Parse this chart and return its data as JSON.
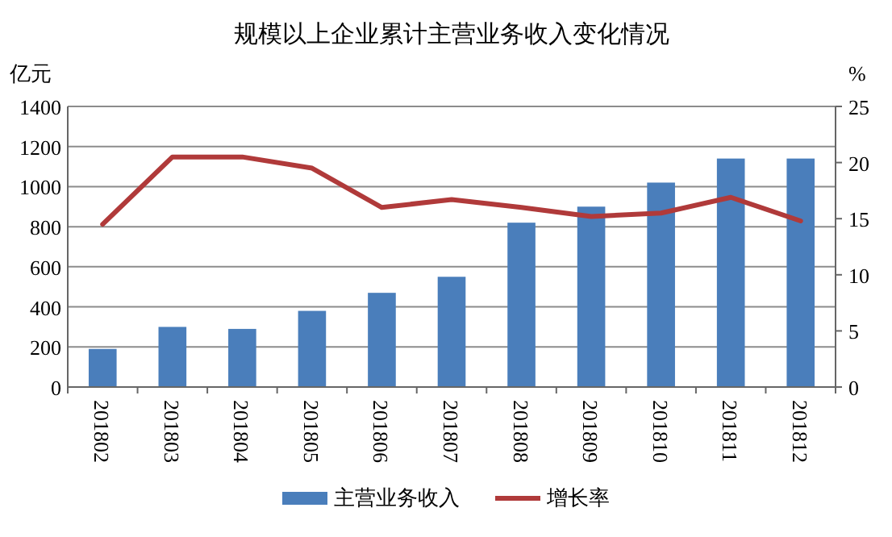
{
  "chart_data": {
    "type": "bar",
    "title": "规模以上企业累计主营业务收入变化情况",
    "ylabel": "亿元",
    "y2label": "%",
    "categories": [
      "201802",
      "201803",
      "201804",
      "201805",
      "201806",
      "201807",
      "201808",
      "201809",
      "201810",
      "201811",
      "201812"
    ],
    "series": [
      {
        "name": "主营业务收入",
        "color": "#4a7ebb",
        "values": [
          190,
          300,
          290,
          380,
          470,
          550,
          820,
          900,
          1020,
          1140,
          1140
        ]
      },
      {
        "name": "增长率",
        "type": "line",
        "axis": "y2",
        "color": "#b03a3a",
        "values": [
          14.5,
          20.5,
          20.5,
          19.5,
          16,
          16.7,
          16,
          15.2,
          15.5,
          16.9,
          14.8
        ]
      }
    ],
    "ylim": [
      0,
      1400
    ],
    "yticks": [
      0,
      200,
      400,
      600,
      800,
      1000,
      1200,
      1400
    ],
    "y2lim": [
      0,
      25
    ],
    "y2ticks": [
      0,
      5,
      10,
      15,
      20,
      25
    ],
    "grid": "y",
    "legend": "bottom",
    "marker": "none",
    "line_style": "solid"
  }
}
